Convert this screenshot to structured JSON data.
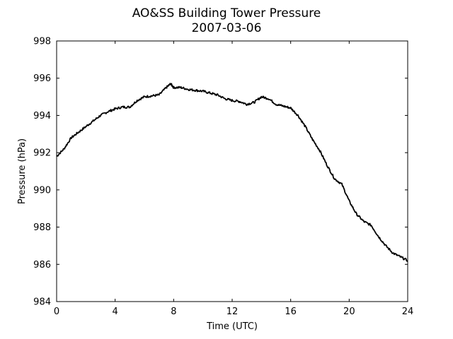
{
  "chart_data": {
    "type": "line",
    "title": "AO&SS Building Tower Pressure",
    "subtitle": "2007-03-06",
    "xlabel": "Time (UTC)",
    "ylabel": "Pressure (hPa)",
    "xlim": [
      0,
      24
    ],
    "ylim": [
      984,
      998
    ],
    "xticks": [
      0,
      4,
      8,
      12,
      16,
      20,
      24
    ],
    "yticks": [
      984,
      986,
      988,
      990,
      992,
      994,
      996,
      998
    ],
    "grid": false,
    "legend": "none",
    "line_color": "#000000",
    "series": [
      {
        "x": [
          0,
          0.5,
          1,
          1.5,
          2,
          2.5,
          3,
          3.5,
          4,
          4.5,
          5,
          5.5,
          6,
          6.5,
          7,
          7.5,
          7.8,
          8,
          8.5,
          9,
          9.5,
          10,
          10.5,
          11,
          11.5,
          12,
          12.5,
          13,
          13.5,
          14,
          14.5,
          15,
          15.5,
          16,
          16.5,
          17,
          17.5,
          18,
          18.5,
          19,
          19.5,
          20,
          20.5,
          21,
          21.5,
          22,
          22.5,
          23,
          23.5,
          24
        ],
        "y": [
          991.8,
          992.2,
          992.8,
          993.1,
          993.4,
          993.7,
          994.0,
          994.2,
          994.35,
          994.45,
          994.45,
          994.8,
          995.0,
          995.05,
          995.1,
          995.5,
          995.7,
          995.5,
          995.5,
          995.4,
          995.35,
          995.3,
          995.2,
          995.1,
          994.9,
          994.8,
          994.75,
          994.6,
          994.7,
          995.0,
          994.9,
          994.6,
          994.5,
          994.4,
          994.0,
          993.4,
          992.7,
          992.1,
          991.3,
          990.6,
          990.3,
          989.4,
          988.7,
          988.3,
          988.1,
          987.5,
          987.0,
          986.6,
          986.4,
          986.2
        ]
      }
    ]
  }
}
